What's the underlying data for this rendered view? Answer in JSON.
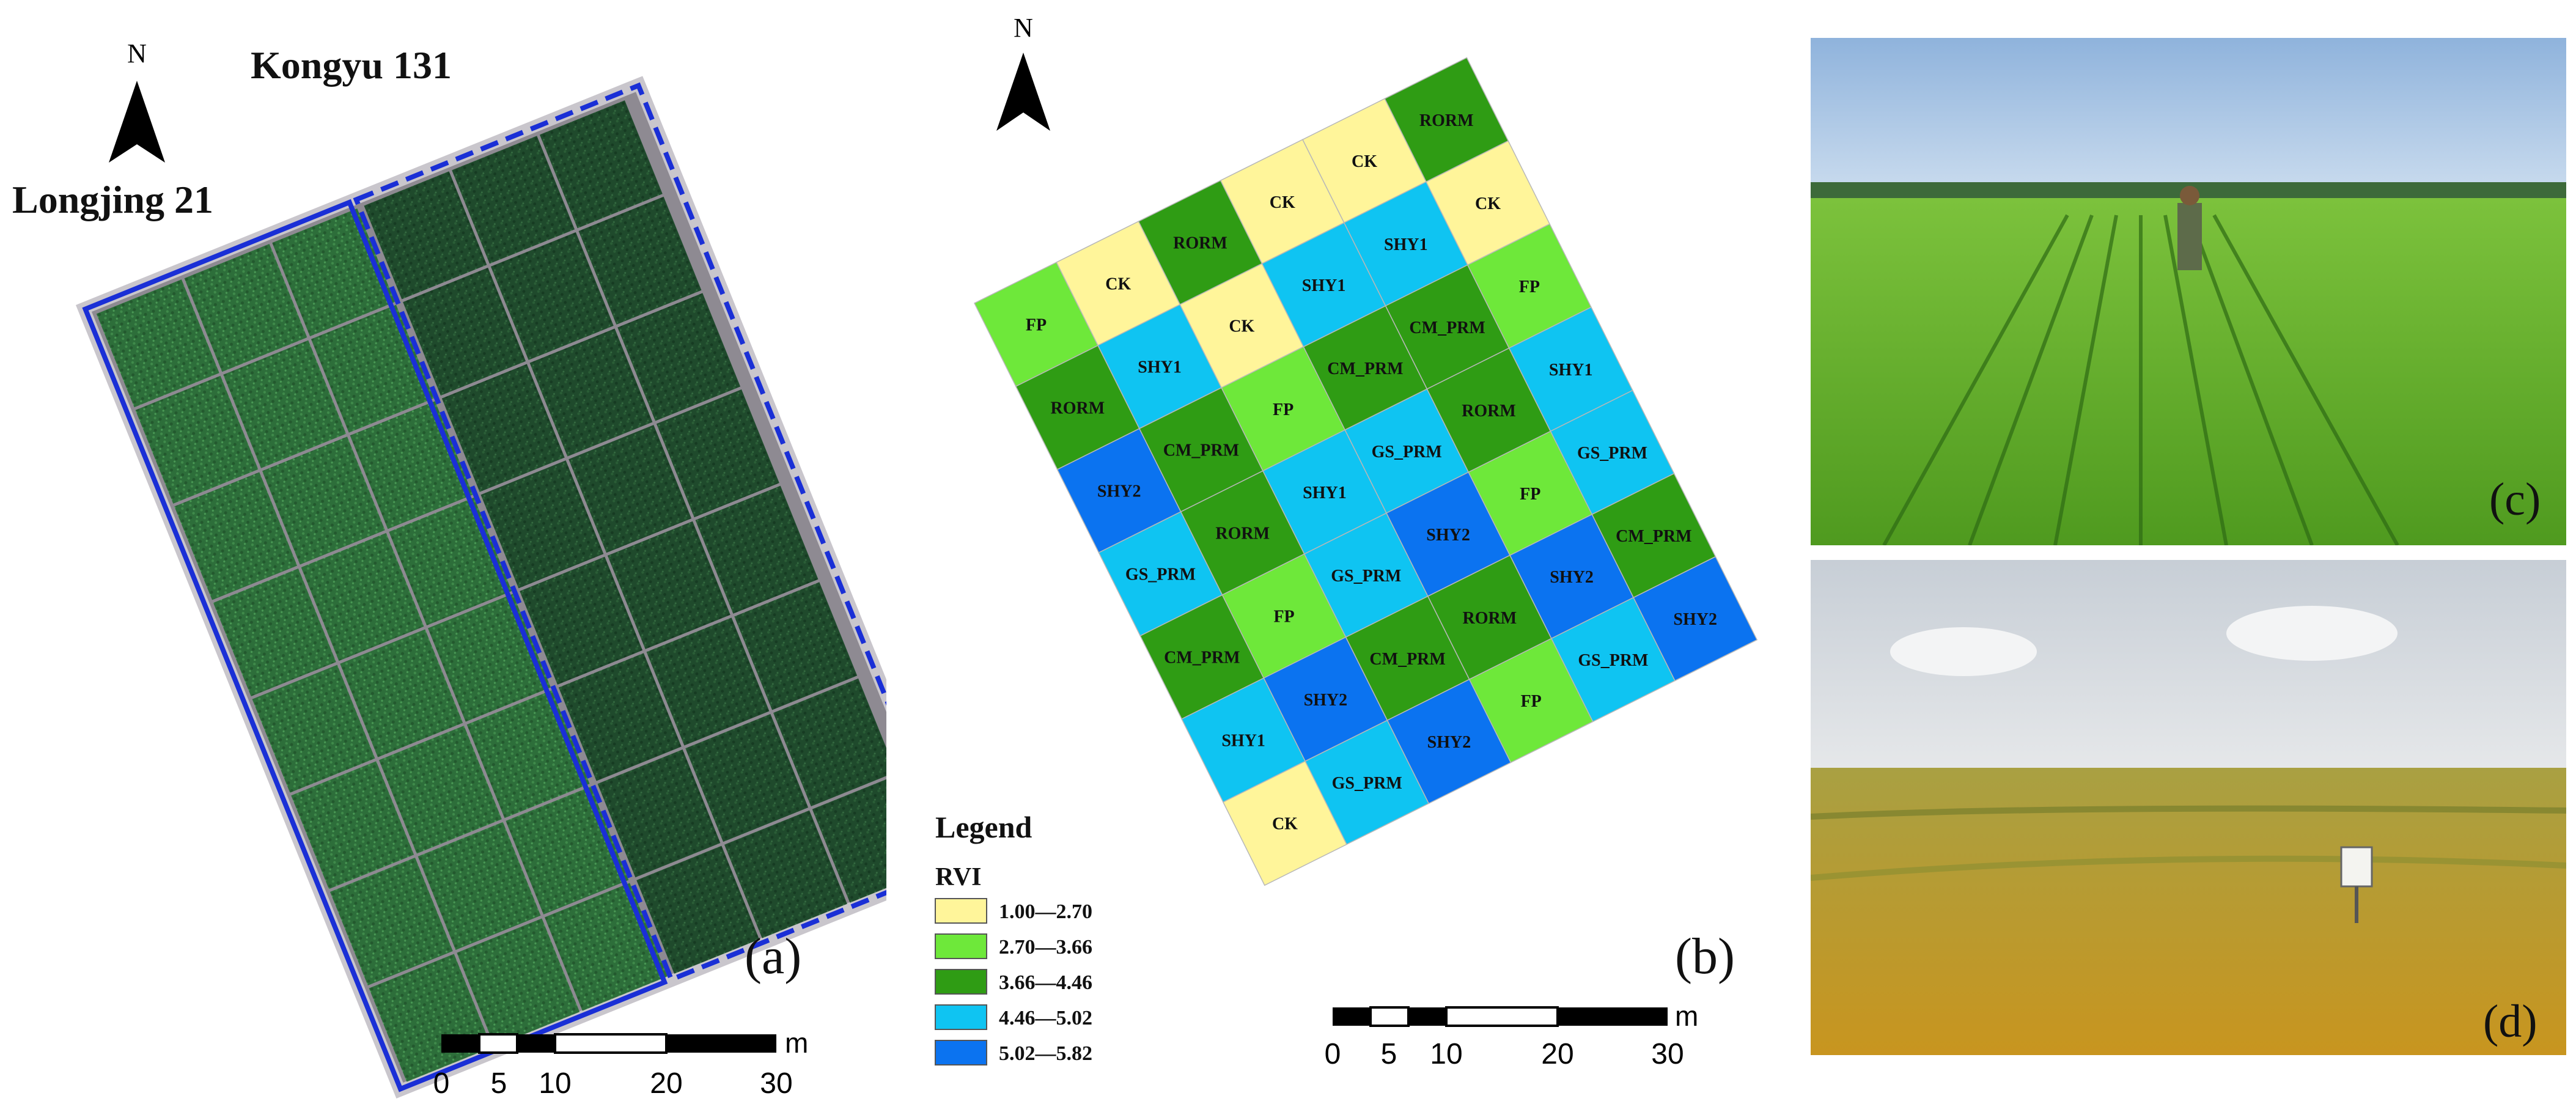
{
  "panel_a": {
    "north": "N",
    "label_kongyu": "Kongyu 131",
    "label_longjing": "Longjing 21",
    "panel_label": "(a)",
    "scale": {
      "unit": "m",
      "ticks": [
        "0",
        "5",
        "10",
        "20",
        "30"
      ]
    }
  },
  "panel_b": {
    "north": "N",
    "panel_label": "(b)",
    "legend": {
      "title": "Legend",
      "subtitle": "RVI",
      "classes": [
        {
          "range": "1.00—2.70",
          "color": "#fff59a"
        },
        {
          "range": "2.70—3.66",
          "color": "#6ee83a"
        },
        {
          "range": "3.66—4.46",
          "color": "#2f9c14"
        },
        {
          "range": "4.46—5.02",
          "color": "#0fc4f2"
        },
        {
          "range": "5.02—5.82",
          "color": "#0b73f0"
        }
      ]
    },
    "plot_grid": [
      [
        "FP",
        "CK",
        "RORM",
        "CK",
        "CK",
        "RORM"
      ],
      [
        "RORM",
        "SHY1",
        "CK",
        "SHY1",
        "SHY1",
        "CK"
      ],
      [
        "SHY2",
        "CM_PRM",
        "FP",
        "CM_PRM",
        "CM_PRM",
        "FP"
      ],
      [
        "GS_PRM",
        "RORM",
        "SHY1",
        "GS_PRM",
        "RORM",
        "SHY1"
      ],
      [
        "CM_PRM",
        "FP",
        "GS_PRM",
        "SHY2",
        "FP",
        "GS_PRM"
      ],
      [
        "SHY1",
        "SHY2",
        "CM_PRM",
        "RORM",
        "SHY2",
        "CM_PRM"
      ],
      [
        "CK",
        "GS_PRM",
        "SHY2",
        "FP",
        "GS_PRM",
        "SHY2"
      ]
    ],
    "scale": {
      "unit": "m",
      "ticks": [
        "0",
        "5",
        "10",
        "20",
        "30"
      ]
    }
  },
  "panel_c": {
    "panel_label": "(c)"
  },
  "panel_d": {
    "panel_label": "(d)"
  },
  "treatment_colors": {
    "CK": "#fff59a",
    "FP": "#6ee83a",
    "RORM": "#2f9c14",
    "CM_PRM": "#2f9c14",
    "GS_PRM": "#0fc4f2",
    "SHY1": "#0fc4f2",
    "SHY2": "#0b73f0"
  }
}
